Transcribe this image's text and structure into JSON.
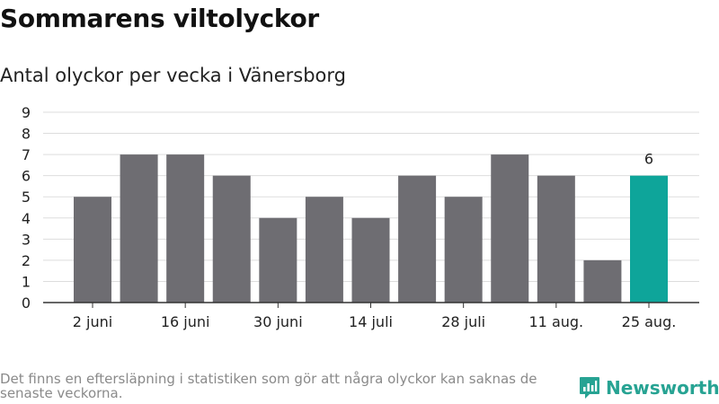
{
  "title": "Sommarens viltolyckor",
  "subtitle": "Antal olyckor per vecka i Vänersborg",
  "footnote": "Det finns en eftersläpning i statistiken som gör att några olyckor kan saknas de senaste veckorna.",
  "brand": {
    "name": "Newsworthy",
    "color": "#27a393"
  },
  "colors": {
    "bar": "#6e6d72",
    "highlight": "#0ea59a",
    "grid": "#dddddd",
    "axis": "#333333"
  },
  "chart_data": {
    "type": "bar",
    "values": [
      5,
      7,
      7,
      6,
      4,
      5,
      4,
      6,
      5,
      7,
      6,
      2,
      6
    ],
    "tick_labels": [
      "2 juni",
      "16 juni",
      "30 juni",
      "14 juli",
      "28 juli",
      "11 aug.",
      "25 aug."
    ],
    "tick_bar_indices": [
      0,
      2,
      4,
      6,
      8,
      10,
      12
    ],
    "highlight_index": 12,
    "data_labels": [
      {
        "index": 12,
        "text": "6"
      }
    ],
    "ylim": [
      0,
      9
    ],
    "yticks": [
      0,
      1,
      2,
      3,
      4,
      5,
      6,
      7,
      8,
      9
    ],
    "grid": true
  }
}
